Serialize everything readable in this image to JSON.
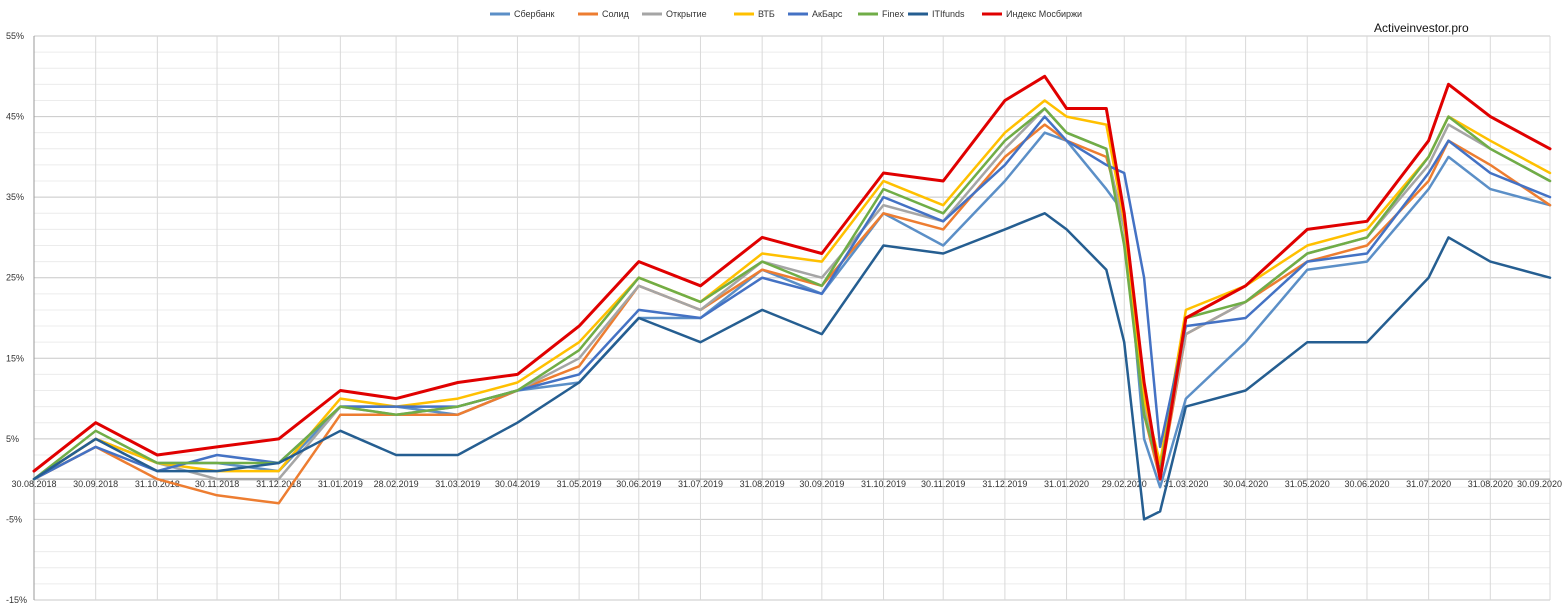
{
  "chart_data": {
    "type": "line",
    "watermark": "Activeinvestor.pro",
    "ylim": [
      -15,
      55
    ],
    "yticks": [
      -15,
      -5,
      5,
      15,
      25,
      35,
      45,
      55
    ],
    "ytick_labels": [
      "-15%",
      "-5%",
      "5%",
      "15%",
      "25%",
      "35%",
      "45%",
      "55%"
    ],
    "grid": true,
    "legend_position": "top",
    "x_start": "30.08.2018",
    "x_end": "30.09.2020",
    "x_tick_labels": [
      "30.08.2018",
      "30.09.2018",
      "31.10.2018",
      "30.11.2018",
      "31.12.2018",
      "31.01.2019",
      "28.02.2019",
      "31.03.2019",
      "30.04.2019",
      "31.05.2019",
      "30.06.2019",
      "31.07.2019",
      "31.08.2019",
      "30.09.2019",
      "31.10.2019",
      "30.11.2019",
      "31.12.2019",
      "31.01.2020",
      "29.02.2020",
      "31.03.2020",
      "30.04.2020",
      "31.05.2020",
      "30.06.2020",
      "31.07.2020",
      "31.08.2020",
      "30.09.2020"
    ],
    "x": [
      "30.08.2018",
      "30.09.2018",
      "31.10.2018",
      "30.11.2018",
      "31.12.2018",
      "31.01.2019",
      "28.02.2019",
      "31.03.2019",
      "30.04.2019",
      "31.05.2019",
      "30.06.2019",
      "31.07.2019",
      "31.08.2019",
      "30.09.2019",
      "31.10.2019",
      "30.11.2019",
      "31.12.2019",
      "20.01.2020",
      "31.01.2020",
      "20.02.2020",
      "29.02.2020",
      "10.03.2020",
      "18.03.2020",
      "31.03.2020",
      "30.04.2020",
      "31.05.2020",
      "30.06.2020",
      "31.07.2020",
      "10.08.2020",
      "31.08.2020",
      "30.09.2020"
    ],
    "series": [
      {
        "name": "Сбербанк",
        "color": "#5b8fc7",
        "values": [
          0,
          5,
          2,
          2,
          1,
          9,
          9,
          8,
          11,
          12,
          20,
          20,
          26,
          23,
          33,
          29,
          37,
          43,
          42,
          36,
          33,
          5,
          -1,
          10,
          17,
          26,
          27,
          36,
          40,
          36,
          34
        ]
      },
      {
        "name": "Солид",
        "color": "#ed7d31",
        "values": [
          0,
          4,
          0,
          -2,
          -3,
          8,
          8,
          8,
          11,
          14,
          24,
          21,
          26,
          24,
          33,
          31,
          40,
          44,
          42,
          40,
          32,
          8,
          0,
          18,
          22,
          27,
          29,
          37,
          42,
          39,
          34
        ]
      },
      {
        "name": "Открытие",
        "color": "#a5a5a5",
        "values": [
          0,
          5,
          2,
          0,
          0,
          9,
          8,
          9,
          11,
          15,
          24,
          21,
          27,
          25,
          34,
          32,
          41,
          46,
          43,
          41,
          31,
          9,
          1,
          18,
          22,
          28,
          30,
          39,
          44,
          41,
          37
        ]
      },
      {
        "name": "ВТБ",
        "color": "#ffc000",
        "values": [
          0,
          5,
          2,
          1,
          1,
          10,
          9,
          10,
          12,
          17,
          25,
          22,
          28,
          27,
          37,
          34,
          43,
          47,
          45,
          44,
          32,
          10,
          2,
          21,
          24,
          29,
          31,
          40,
          45,
          42,
          38
        ]
      },
      {
        "name": "АкБарс",
        "color": "#4472c4",
        "values": [
          0,
          4,
          1,
          3,
          2,
          9,
          9,
          9,
          11,
          13,
          21,
          20,
          25,
          23,
          35,
          32,
          39,
          45,
          42,
          39,
          38,
          25,
          4,
          19,
          20,
          27,
          28,
          38,
          42,
          38,
          35
        ]
      },
      {
        "name": "Finex",
        "color": "#70ad47",
        "values": [
          0,
          6,
          2,
          2,
          2,
          9,
          8,
          9,
          11,
          16,
          25,
          22,
          27,
          24,
          36,
          33,
          42,
          46,
          43,
          41,
          29,
          8,
          1,
          20,
          22,
          28,
          30,
          40,
          45,
          41,
          37
        ]
      },
      {
        "name": "ITIfunds",
        "color": "#255e91",
        "values": [
          0,
          5,
          1,
          1,
          2,
          6,
          3,
          3,
          7,
          12,
          20,
          17,
          21,
          18,
          29,
          28,
          31,
          33,
          31,
          26,
          17,
          -5,
          -4,
          9,
          11,
          17,
          17,
          25,
          30,
          27,
          25
        ]
      },
      {
        "name": "Индекс Мосбиржи",
        "color": "#e00000",
        "values": [
          1,
          7,
          3,
          4,
          5,
          11,
          10,
          12,
          13,
          19,
          27,
          24,
          30,
          28,
          38,
          37,
          47,
          50,
          46,
          46,
          33,
          12,
          0,
          20,
          24,
          31,
          32,
          42,
          49,
          45,
          41
        ]
      }
    ]
  }
}
